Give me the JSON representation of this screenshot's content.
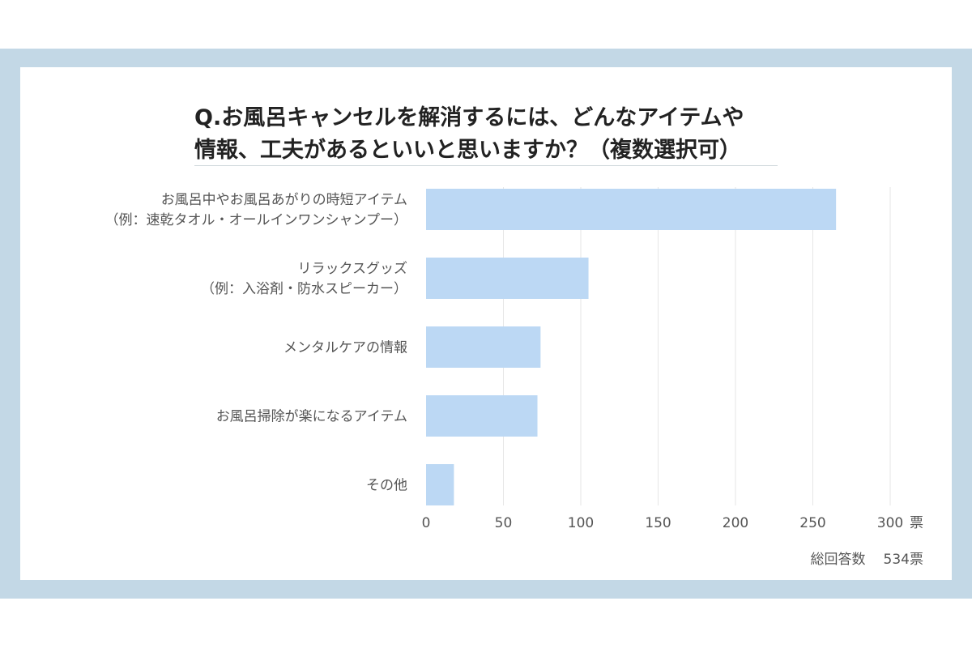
{
  "title_lines": [
    "Q.お風呂キャンセルを解消するには、どんなアイテムや",
    "情報、工夫があるといいと思いますか？（複数選択可）"
  ],
  "colors": {
    "frame": "#c3d8e6",
    "bar": "#bcd8f4",
    "grid": "#e6e6e6"
  },
  "chart_data": {
    "type": "bar",
    "orientation": "horizontal",
    "title": "Q.お風呂キャンセルを解消するには、どんなアイテムや情報、工夫があるといいと思いますか？（複数選択可）",
    "categories": [
      [
        "お風呂中やお風呂あがりの時短アイテム",
        "（例：速乾タオル・オールインワンシャンプー）"
      ],
      [
        "リラックスグッズ",
        "（例：入浴剤・防水スピーカー）"
      ],
      [
        "メンタルケアの情報"
      ],
      [
        "お風呂掃除が楽になるアイテム"
      ],
      [
        "その他"
      ]
    ],
    "values": [
      265,
      105,
      74,
      72,
      18
    ],
    "xlim": [
      0,
      300
    ],
    "x_ticks": [
      0,
      50,
      100,
      150,
      200,
      250,
      300
    ],
    "x_unit": "票",
    "grid": true
  },
  "total": {
    "label": "総回答数",
    "value": "534票"
  }
}
